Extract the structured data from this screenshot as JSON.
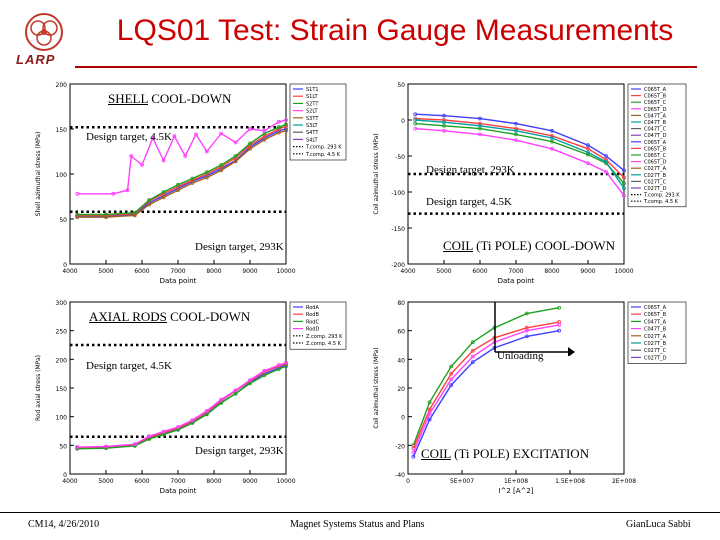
{
  "slide": {
    "title": "LQS01 Test: Strain Gauge Measurements",
    "logo_text": "LARP",
    "footer_left": "CM14, 4/26/2010",
    "footer_center": "Magnet Systems Status and Plans",
    "footer_right": "GianLuca Sabbi"
  },
  "sections": {
    "shell": {
      "label": "SHELL COOL-DOWN",
      "underline": "SHELL",
      "rest": " COOL-DOWN"
    },
    "coil_pole": {
      "underline": "COIL",
      "rest": " (Ti POLE) COOL-DOWN"
    },
    "axial": {
      "underline": "AXIAL RODS",
      "rest": " COOL-DOWN"
    },
    "excitation": {
      "underline": "COIL",
      "rest": " (Ti POLE) EXCITATION"
    }
  },
  "annotations": {
    "shell_45k": "Design target, 4.5K",
    "shell_293k": "Design target, 293K",
    "coil_293k": "Design target, 293K",
    "coil_45k": "Design target, 4.5K",
    "axial_45k": "Design target, 4.5K",
    "axial_293k": "Design target, 293K",
    "unloading": "Unloading"
  },
  "chart_data": [
    {
      "id": "shell",
      "type": "line",
      "xlabel": "Data point",
      "ylabel": "Shell azimuthal stress (MPa)",
      "xlim": [
        4000,
        10000
      ],
      "ylim": [
        0,
        200
      ],
      "xticks": [
        4000,
        5000,
        6000,
        7000,
        8000,
        9000,
        10000
      ],
      "yticks": [
        0,
        50,
        100,
        150,
        200
      ],
      "legend": [
        "S1T1",
        "S1LT",
        "S2TT",
        "S2LT",
        "S3TT",
        "S3LT",
        "S4TT",
        "S4LT",
        "T.comp. 293 K",
        "T.comp. 4.5 K"
      ],
      "targets": [
        {
          "label": "Design target, 4.5K",
          "y": 152
        },
        {
          "label": "Design target, 293K",
          "y": 58
        }
      ],
      "series": [
        {
          "name": "S1T1",
          "color": "#4040ff",
          "x": [
            4200,
            5000,
            5800,
            6200,
            6600,
            7000,
            7400,
            7800,
            8200,
            8600,
            9000,
            9400,
            9800,
            10000
          ],
          "y": [
            53,
            53,
            55,
            68,
            76,
            84,
            92,
            98,
            106,
            115,
            130,
            140,
            148,
            150
          ]
        },
        {
          "name": "S1LT",
          "color": "#ff4040",
          "x": [
            4200,
            5000,
            5800,
            6200,
            6600,
            7000,
            7400,
            7800,
            8200,
            8600,
            9000,
            9400,
            9800,
            10000
          ],
          "y": [
            54,
            54,
            56,
            70,
            78,
            86,
            93,
            100,
            108,
            118,
            132,
            142,
            150,
            153
          ]
        },
        {
          "name": "S2TT",
          "color": "#20a020",
          "x": [
            4200,
            5000,
            5800,
            6200,
            6600,
            7000,
            7400,
            7800,
            8200,
            8600,
            9000,
            9400,
            9800,
            10000
          ],
          "y": [
            55,
            55,
            57,
            71,
            80,
            88,
            95,
            102,
            110,
            120,
            134,
            145,
            152,
            155
          ]
        },
        {
          "name": "S2LT",
          "color": "#ff40ff",
          "x": [
            4200,
            5200,
            5600,
            5700,
            6000,
            6300,
            6600,
            6900,
            7200,
            7500,
            7800,
            8200,
            8600,
            9000,
            9400,
            9800,
            10000
          ],
          "y": [
            78,
            78,
            82,
            120,
            110,
            140,
            115,
            142,
            120,
            144,
            125,
            145,
            135,
            150,
            148,
            158,
            160
          ]
        },
        {
          "name": "S3TT",
          "color": "#a06020",
          "x": [
            4200,
            5000,
            5800,
            6200,
            6600,
            7000,
            7400,
            7800,
            8200,
            8600,
            9000,
            9400,
            9800,
            10000
          ],
          "y": [
            52,
            52,
            54,
            66,
            74,
            82,
            90,
            96,
            104,
            114,
            128,
            138,
            146,
            148
          ]
        }
      ]
    },
    {
      "id": "coil_pole",
      "type": "line",
      "xlabel": "Data point",
      "ylabel": "Coil azimuthal stress (MPa)",
      "xlim": [
        4000,
        10000
      ],
      "ylim": [
        -200,
        50
      ],
      "xticks": [
        4000,
        5000,
        6000,
        7000,
        8000,
        9000,
        10000
      ],
      "yticks": [
        -200,
        -150,
        -100,
        -50,
        0,
        50
      ],
      "legend": [
        "C065T_A",
        "C065T_B",
        "C065T_C",
        "C065T_D",
        "C047T_A",
        "C047T_B",
        "C047T_C",
        "C047T_D",
        "C065T_A",
        "C065T_B",
        "C065T_C",
        "C065T_D",
        "C027T_A",
        "C027T_B",
        "C027T_C",
        "C027T_D",
        "T.comp. 293 K",
        "T.comp. 4.5 K"
      ],
      "targets": [
        {
          "label": "Design target, 293K",
          "y": -75
        },
        {
          "label": "Design target, 4.5K",
          "y": -130
        }
      ],
      "series": [
        {
          "name": "C065T_A",
          "color": "#4040ff",
          "x": [
            4200,
            5000,
            6000,
            7000,
            8000,
            9000,
            9500,
            10000
          ],
          "y": [
            8,
            6,
            2,
            -5,
            -15,
            -35,
            -50,
            -70
          ]
        },
        {
          "name": "C065T_B",
          "color": "#ff4040",
          "x": [
            4200,
            5000,
            6000,
            7000,
            8000,
            9000,
            9500,
            10000
          ],
          "y": [
            2,
            0,
            -5,
            -12,
            -22,
            -40,
            -55,
            -80
          ]
        },
        {
          "name": "C047T_A",
          "color": "#20a020",
          "x": [
            4200,
            5000,
            6000,
            7000,
            8000,
            9000,
            9500,
            10000
          ],
          "y": [
            -5,
            -8,
            -12,
            -20,
            -30,
            -48,
            -60,
            -88
          ]
        },
        {
          "name": "C047T_B",
          "color": "#ff40ff",
          "x": [
            4200,
            5000,
            6000,
            7000,
            8000,
            9000,
            9500,
            10000
          ],
          "y": [
            -12,
            -15,
            -20,
            -28,
            -40,
            -60,
            -72,
            -105
          ]
        },
        {
          "name": "C027T_A",
          "color": "#00a0a0",
          "x": [
            4200,
            5000,
            6000,
            7000,
            8000,
            9000,
            9500,
            10000
          ],
          "y": [
            0,
            -3,
            -8,
            -15,
            -25,
            -45,
            -58,
            -95
          ]
        }
      ]
    },
    {
      "id": "axial",
      "type": "line",
      "xlabel": "Data point",
      "ylabel": "Rod axial stress (MPa)",
      "xlim": [
        4000,
        10000
      ],
      "ylim": [
        0,
        300
      ],
      "xticks": [
        4000,
        5000,
        6000,
        7000,
        8000,
        9000,
        10000
      ],
      "yticks": [
        0,
        50,
        100,
        150,
        200,
        250,
        300
      ],
      "legend": [
        "RodA",
        "RodB",
        "RodC",
        "RodD",
        "Z.comp. 293 K",
        "Z.comp. 4.5 K"
      ],
      "targets": [
        {
          "label": "Design target, 4.5K",
          "y": 225
        },
        {
          "label": "Design target, 293K",
          "y": 65
        }
      ],
      "series": [
        {
          "name": "RodA",
          "color": "#4040ff",
          "x": [
            4200,
            5000,
            5800,
            6200,
            6600,
            7000,
            7400,
            7800,
            8200,
            8600,
            9000,
            9400,
            9800,
            10000
          ],
          "y": [
            45,
            46,
            50,
            62,
            70,
            78,
            90,
            105,
            125,
            140,
            160,
            175,
            185,
            190
          ]
        },
        {
          "name": "RodB",
          "color": "#ff4040",
          "x": [
            4200,
            5000,
            5800,
            6200,
            6600,
            7000,
            7400,
            7800,
            8200,
            8600,
            9000,
            9400,
            9800,
            10000
          ],
          "y": [
            46,
            47,
            51,
            64,
            72,
            80,
            92,
            108,
            128,
            145,
            162,
            178,
            188,
            192
          ]
        },
        {
          "name": "RodC",
          "color": "#20a020",
          "x": [
            4200,
            5000,
            5800,
            6200,
            6600,
            7000,
            7400,
            7800,
            8200,
            8600,
            9000,
            9400,
            9800,
            10000
          ],
          "y": [
            44,
            45,
            49,
            61,
            69,
            77,
            89,
            104,
            124,
            140,
            158,
            172,
            183,
            188
          ]
        },
        {
          "name": "RodD",
          "color": "#ff40ff",
          "x": [
            4200,
            5000,
            5800,
            6200,
            6600,
            7000,
            7400,
            7800,
            8200,
            8600,
            9000,
            9400,
            9800,
            10000
          ],
          "y": [
            47,
            48,
            52,
            66,
            74,
            82,
            94,
            110,
            130,
            146,
            164,
            180,
            190,
            194
          ]
        }
      ]
    },
    {
      "id": "excitation",
      "type": "line",
      "xlabel": "I^2 [A^2]",
      "ylabel": "Coil azimuthal stress (MPa)",
      "xlim": [
        0,
        200000000
      ],
      "ylim": [
        -40,
        80
      ],
      "xticks": [
        0,
        50000000,
        100000000,
        150000000,
        200000000
      ],
      "xticklabels": [
        "0",
        "5E+007",
        "1E+008",
        "1.5E+008",
        "2E+008"
      ],
      "yticks": [
        -40,
        -20,
        0,
        20,
        40,
        60,
        80
      ],
      "legend": [
        "C065T_A",
        "C065T_B",
        "C047T_A",
        "C047T_B",
        "C027T_A",
        "C027T_B",
        "C027T_C",
        "C027T_D"
      ],
      "series": [
        {
          "name": "C065T_A",
          "color": "#20a020",
          "x": [
            5000000,
            20000000,
            40000000,
            60000000,
            80000000,
            110000000,
            140000000
          ],
          "y": [
            -20,
            10,
            35,
            52,
            62,
            72,
            76
          ]
        },
        {
          "name": "C047T_A",
          "color": "#ff4040",
          "x": [
            5000000,
            20000000,
            40000000,
            60000000,
            80000000,
            110000000,
            140000000
          ],
          "y": [
            -22,
            5,
            30,
            46,
            55,
            62,
            66
          ]
        },
        {
          "name": "C047T_B",
          "color": "#ff40ff",
          "x": [
            5000000,
            20000000,
            40000000,
            60000000,
            80000000,
            110000000,
            140000000
          ],
          "y": [
            -25,
            2,
            26,
            42,
            52,
            60,
            64
          ]
        },
        {
          "name": "C027T_A",
          "color": "#4040ff",
          "x": [
            5000000,
            20000000,
            40000000,
            60000000,
            80000000,
            110000000,
            140000000
          ],
          "y": [
            -28,
            -2,
            22,
            38,
            48,
            56,
            60
          ]
        }
      ]
    }
  ]
}
